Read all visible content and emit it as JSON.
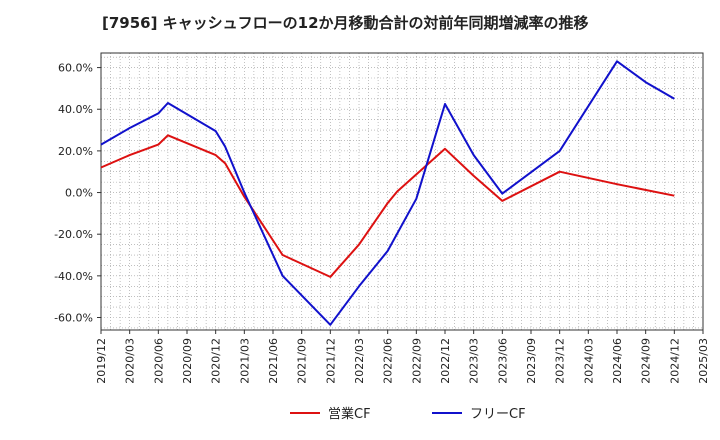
{
  "chart_data": {
    "type": "line",
    "title": "[7956]  キャッシュフローの12か月移動合計の対前年同期増減率の推移",
    "xlabel": "",
    "ylabel": "",
    "ylim": [
      -66,
      67
    ],
    "grid": true,
    "legend_position": "bottom-center",
    "x_ticks": [
      "2019/12",
      "2020/03",
      "2020/06",
      "2020/09",
      "2020/12",
      "2021/03",
      "2021/06",
      "2021/09",
      "2021/12",
      "2022/03",
      "2022/06",
      "2022/09",
      "2022/12",
      "2023/03",
      "2023/06",
      "2023/09",
      "2023/12",
      "2024/03",
      "2024/06",
      "2024/09",
      "2024/12",
      "2025/03"
    ],
    "y_ticks": [
      {
        "value": 60,
        "label": "60.0%"
      },
      {
        "value": 40,
        "label": "40.0%"
      },
      {
        "value": 20,
        "label": "20.0%"
      },
      {
        "value": 0,
        "label": "0.0%"
      },
      {
        "value": -20,
        "label": "-20.0%"
      },
      {
        "value": -40,
        "label": "-40.0%"
      },
      {
        "value": -60,
        "label": "-60.0%"
      }
    ],
    "series": [
      {
        "name": "営業CF",
        "color": "#dd1111",
        "points": [
          [
            "2019/12",
            12
          ],
          [
            "2020/03",
            18
          ],
          [
            "2020/06",
            23
          ],
          [
            "2020/07",
            27.5
          ],
          [
            "2020/12",
            18
          ],
          [
            "2021/01",
            14
          ],
          [
            "2021/03",
            -2
          ],
          [
            "2021/07",
            -30
          ],
          [
            "2021/12",
            -40.5
          ],
          [
            "2022/03",
            -25
          ],
          [
            "2022/06",
            -5
          ],
          [
            "2022/07",
            0.5
          ],
          [
            "2022/12",
            21
          ],
          [
            "2023/03",
            8
          ],
          [
            "2023/06",
            -4
          ],
          [
            "2023/12",
            10
          ],
          [
            "2024/06",
            4
          ],
          [
            "2024/12",
            -1.5
          ]
        ]
      },
      {
        "name": "フリーCF",
        "color": "#1111cc",
        "points": [
          [
            "2019/12",
            23
          ],
          [
            "2020/03",
            31
          ],
          [
            "2020/06",
            38
          ],
          [
            "2020/07",
            43
          ],
          [
            "2020/12",
            29.5
          ],
          [
            "2021/01",
            22
          ],
          [
            "2021/03",
            0
          ],
          [
            "2021/07",
            -40
          ],
          [
            "2021/12",
            -63.5
          ],
          [
            "2022/03",
            -45
          ],
          [
            "2022/06",
            -28
          ],
          [
            "2022/09",
            -3
          ],
          [
            "2022/12",
            42.5
          ],
          [
            "2023/03",
            18
          ],
          [
            "2023/06",
            -0.5
          ],
          [
            "2023/12",
            20
          ],
          [
            "2024/06",
            63
          ],
          [
            "2024/09",
            53
          ],
          [
            "2024/12",
            45
          ]
        ]
      }
    ]
  }
}
